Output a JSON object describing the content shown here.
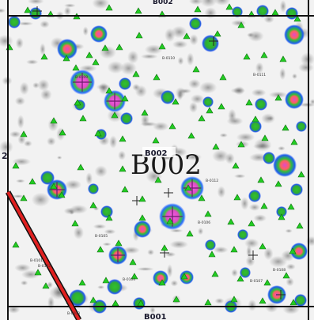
{
  "map": {
    "main_label": "B002",
    "top_label": "B002",
    "bottom_label": "B001",
    "left_edge_label": "2",
    "well_labels": [
      "B-0101",
      "B-0102",
      "B-0103",
      "B-0104",
      "B-0105",
      "B-0106",
      "B-0107",
      "B-0108",
      "B-0109",
      "B-0110",
      "B-0111",
      "B-0112"
    ],
    "colors": {
      "background": "#f2f2f2",
      "boundary": "#111111",
      "fault_line": "#e02020",
      "well_marker": "#22cc22",
      "hotspot_high": "#e040c0",
      "hotspot_mid": "#30c030",
      "hotspot_low": "#2060ff"
    }
  }
}
